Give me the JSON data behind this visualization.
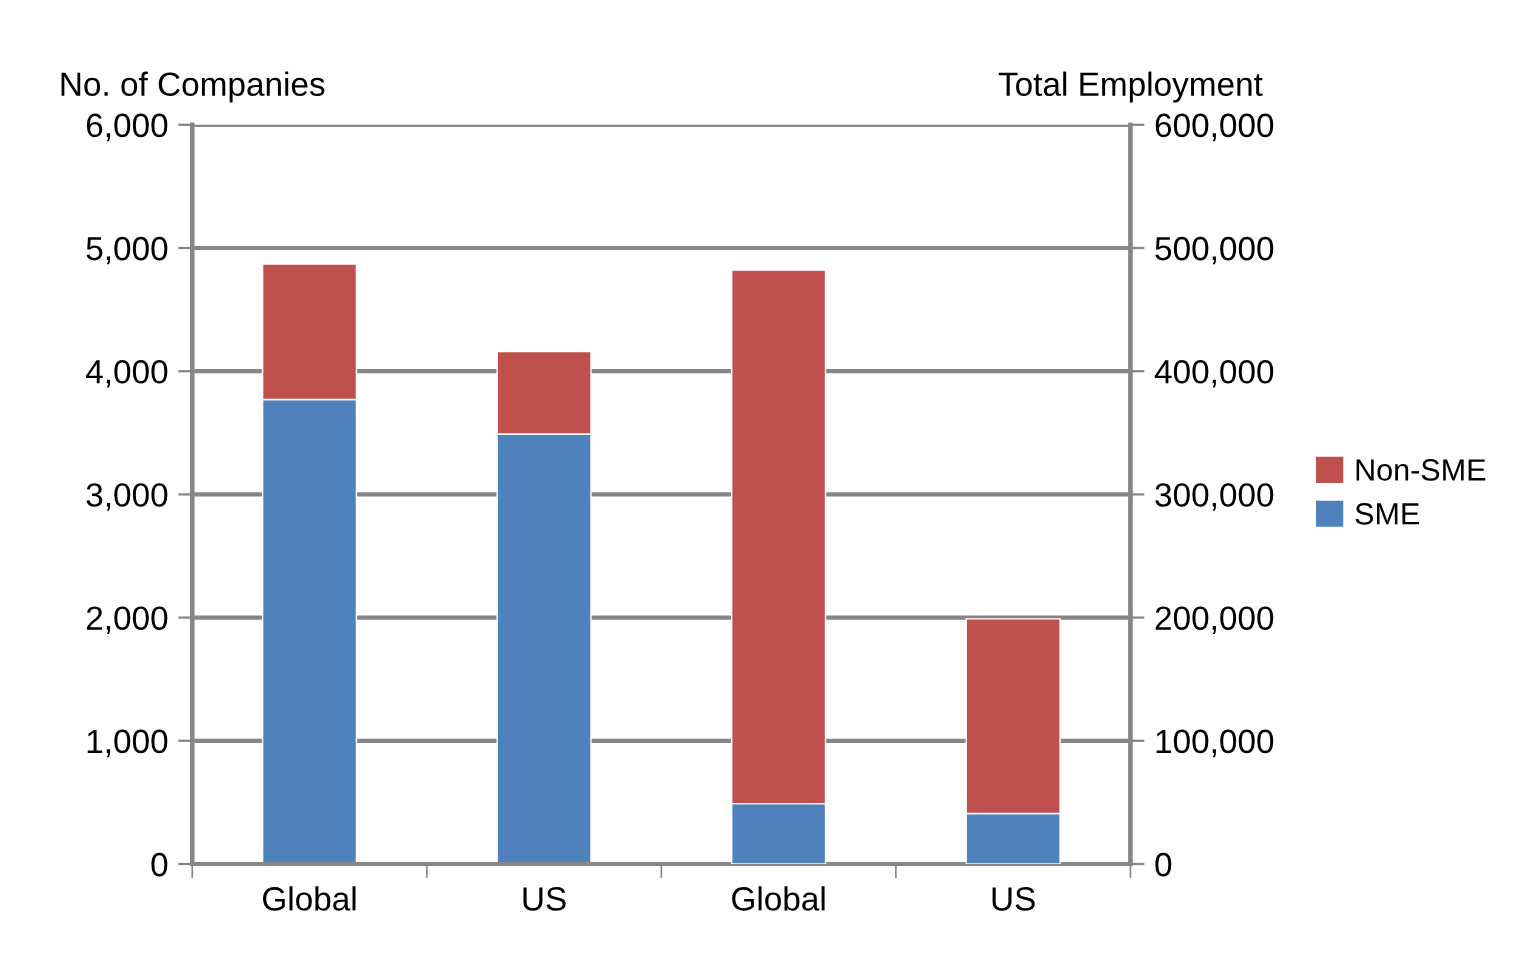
{
  "chart_data": {
    "type": "bar",
    "stacked": true,
    "ylabel": "No. of Companies",
    "y2label": "Total Employment",
    "categories": [
      "Global",
      "US",
      "Global",
      "US"
    ],
    "series": [
      {
        "name": "SME",
        "color": "#4f81bd",
        "values": [
          3770,
          3490,
          null,
          null
        ]
      },
      {
        "name": "Non-SME",
        "color": "#c0504d",
        "values": [
          1100,
          670,
          null,
          null
        ]
      },
      {
        "color": "#4f81bd",
        "axis": "y2",
        "values": [
          null,
          null,
          49000,
          41000
        ]
      },
      {
        "color": "#c0504d",
        "axis": "y2",
        "values": [
          null,
          null,
          433000,
          158000
        ]
      }
    ],
    "ylim": [
      0,
      6000
    ],
    "yticks": [
      {
        "value": 0,
        "label": "0"
      },
      {
        "value": 1000,
        "label": "1,000"
      },
      {
        "value": 2000,
        "label": "2,000"
      },
      {
        "value": 3000,
        "label": "3,000"
      },
      {
        "value": 4000,
        "label": "4,000"
      },
      {
        "value": 5000,
        "label": "5,000"
      },
      {
        "value": 6000,
        "label": "6,000"
      }
    ],
    "y2lim": [
      0,
      600000
    ],
    "y2ticks": [
      {
        "value": 0,
        "label": "0"
      },
      {
        "value": 100000,
        "label": "100,000"
      },
      {
        "value": 200000,
        "label": "200,000"
      },
      {
        "value": 300000,
        "label": "300,000"
      },
      {
        "value": 400000,
        "label": "400,000"
      },
      {
        "value": 500000,
        "label": "500,000"
      },
      {
        "value": 600000,
        "label": "600,000"
      }
    ],
    "grid": "y",
    "legend": "right"
  }
}
